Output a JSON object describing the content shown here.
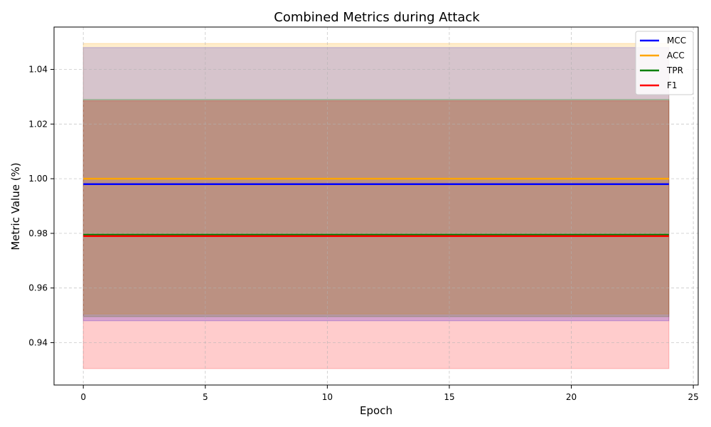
{
  "chart_data": {
    "type": "line",
    "title": "Combined Metrics during Attack",
    "xlabel": "Epoch",
    "ylabel": "Metric Value (%)",
    "xlim": [
      -1.2,
      25.2
    ],
    "ylim": [
      0.9245,
      1.0555
    ],
    "xticks": [
      0,
      5,
      10,
      15,
      20,
      25
    ],
    "yticks": [
      0.94,
      0.96,
      0.98,
      1.0,
      1.02,
      1.04
    ],
    "ytick_labels": [
      "0.94",
      "0.96",
      "0.98",
      "1.00",
      "1.02",
      "1.04"
    ],
    "xtick_labels": [
      "0",
      "5",
      "10",
      "15",
      "20",
      "25"
    ],
    "x": [
      0,
      24
    ],
    "grid": true,
    "legend_position": "top-right",
    "series": [
      {
        "name": "MCC",
        "color": "#0000ff",
        "values": [
          0.998,
          0.998
        ],
        "band": [
          0.948,
          1.048
        ]
      },
      {
        "name": "ACC",
        "color": "#ffa500",
        "values": [
          1.0,
          1.0
        ],
        "band": [
          0.9505,
          1.0495
        ]
      },
      {
        "name": "TPR",
        "color": "#008000",
        "values": [
          0.9795,
          0.9795
        ],
        "band": [
          0.9495,
          1.029
        ]
      },
      {
        "name": "F1",
        "color": "#ff0000",
        "values": [
          0.979,
          0.979
        ],
        "band": [
          0.9305,
          1.0285
        ]
      }
    ]
  }
}
